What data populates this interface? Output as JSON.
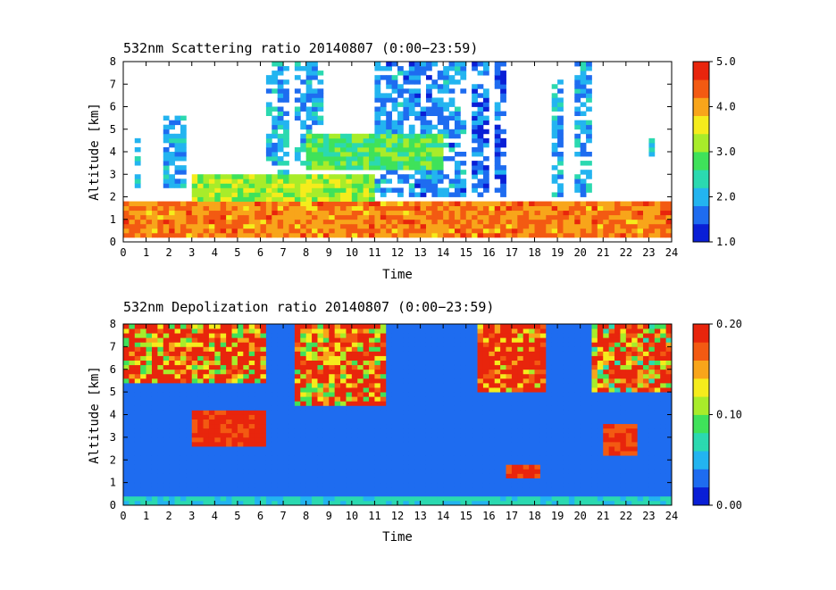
{
  "chart_data": [
    {
      "type": "heatmap",
      "title": "532nm Scattering ratio  20140807 (0:00−23:59)",
      "xlabel": "Time",
      "ylabel": "Altitude [km]",
      "xlim": [
        0,
        24
      ],
      "ylim": [
        0,
        8
      ],
      "x_ticks": [
        "0",
        "1",
        "2",
        "3",
        "4",
        "5",
        "6",
        "7",
        "8",
        "9",
        "10",
        "11",
        "12",
        "13",
        "14",
        "15",
        "16",
        "17",
        "18",
        "19",
        "20",
        "21",
        "22",
        "23",
        "24"
      ],
      "y_ticks": [
        "0",
        "1",
        "2",
        "3",
        "4",
        "5",
        "6",
        "7",
        "8"
      ],
      "colorbar": {
        "min": 1.0,
        "max": 5.0,
        "ticks": [
          "1.0",
          "2.0",
          "3.0",
          "4.0",
          "5.0"
        ],
        "colors": [
          "#0a1fd6",
          "#1e6cf0",
          "#23b4f0",
          "#2bd9b0",
          "#3fe25a",
          "#a8ec2a",
          "#f5ec1c",
          "#f8a51a",
          "#f35a12",
          "#e8250c"
        ]
      },
      "features": [
        {
          "kind": "boundary_layer",
          "time": [
            0,
            24
          ],
          "altitude": [
            0.3,
            1.8
          ],
          "value": 4.2
        },
        {
          "kind": "aerosol_layer",
          "time": [
            3,
            11
          ],
          "altitude": [
            1.8,
            3.0
          ],
          "value": 3.2
        },
        {
          "kind": "aerosol_layer",
          "time": [
            8,
            14
          ],
          "altitude": [
            3.3,
            4.8
          ],
          "value": 2.8
        },
        {
          "kind": "cloud_column",
          "time": [
            0.6,
            0.8
          ],
          "altitude": [
            2.4,
            4.5
          ],
          "value": 2.0
        },
        {
          "kind": "cloud_column",
          "time": [
            1.7,
            2.8
          ],
          "altitude": [
            2.5,
            5.5
          ],
          "value": 2.0
        },
        {
          "kind": "cloud_column",
          "time": [
            6.3,
            7.3
          ],
          "altitude": [
            2.0,
            8.0
          ],
          "value": 2.0
        },
        {
          "kind": "cloud_column",
          "time": [
            7.6,
            8.8
          ],
          "altitude": [
            2.0,
            8.0
          ],
          "value": 2.0
        },
        {
          "kind": "cloud_column",
          "time": [
            11.0,
            14.9
          ],
          "altitude": [
            2.0,
            8.0
          ],
          "value": 1.8
        },
        {
          "kind": "cloud_column",
          "time": [
            15.2,
            15.9
          ],
          "altitude": [
            2.0,
            8.0
          ],
          "value": 1.6
        },
        {
          "kind": "cloud_column",
          "time": [
            16.3,
            16.8
          ],
          "altitude": [
            2.0,
            8.0
          ],
          "value": 1.6
        },
        {
          "kind": "cloud_column",
          "time": [
            18.8,
            19.3
          ],
          "altitude": [
            2.0,
            8.0
          ],
          "value": 2.0
        },
        {
          "kind": "cloud_column",
          "time": [
            19.8,
            20.4
          ],
          "altitude": [
            2.0,
            8.0
          ],
          "value": 2.0
        },
        {
          "kind": "cloud_column",
          "time": [
            22.9,
            23.3
          ],
          "altitude": [
            3.5,
            5.0
          ],
          "value": 2.0
        }
      ]
    },
    {
      "type": "heatmap",
      "title": "532nm Depolization ratio  20140807 (0:00−23:59)",
      "xlabel": "Time",
      "ylabel": "Altitude [km]",
      "xlim": [
        0,
        24
      ],
      "ylim": [
        0,
        8
      ],
      "x_ticks": [
        "0",
        "1",
        "2",
        "3",
        "4",
        "5",
        "6",
        "7",
        "8",
        "9",
        "10",
        "11",
        "12",
        "13",
        "14",
        "15",
        "16",
        "17",
        "18",
        "19",
        "20",
        "21",
        "22",
        "23",
        "24"
      ],
      "y_ticks": [
        "0",
        "1",
        "2",
        "3",
        "4",
        "5",
        "6",
        "7",
        "8"
      ],
      "colorbar": {
        "min": 0.0,
        "max": 0.2,
        "ticks": [
          "0.00",
          "0.10",
          "0.20"
        ],
        "colors": [
          "#0a1fd6",
          "#1e6cf0",
          "#23b4f0",
          "#2bd9b0",
          "#3fe25a",
          "#a8ec2a",
          "#f5ec1c",
          "#f8a51a",
          "#f35a12",
          "#e8250c"
        ]
      },
      "features": [
        {
          "kind": "background",
          "time": [
            0,
            24
          ],
          "altitude": [
            0,
            8
          ],
          "value": 0.03
        },
        {
          "kind": "noisy_upper",
          "time": [
            0,
            6.3
          ],
          "altitude": [
            5.5,
            8.0
          ],
          "value": 0.15
        },
        {
          "kind": "noisy_upper",
          "time": [
            7.5,
            11.5
          ],
          "altitude": [
            4.5,
            8.0
          ],
          "value": 0.15
        },
        {
          "kind": "noisy_upper",
          "time": [
            15.5,
            18.5
          ],
          "altitude": [
            5.0,
            8.0
          ],
          "value": 0.18
        },
        {
          "kind": "noisy_upper",
          "time": [
            20.6,
            24.0
          ],
          "altitude": [
            5.0,
            8.0
          ],
          "value": 0.14
        },
        {
          "kind": "dust_patch",
          "time": [
            3,
            6.3
          ],
          "altitude": [
            2.6,
            4.2
          ],
          "value": 0.19
        },
        {
          "kind": "dust_patch",
          "time": [
            16.8,
            18.3
          ],
          "altitude": [
            1.2,
            1.8
          ],
          "value": 0.19
        },
        {
          "kind": "dust_patch",
          "time": [
            21,
            22.5
          ],
          "altitude": [
            2.3,
            3.5
          ],
          "value": 0.18
        }
      ]
    }
  ]
}
